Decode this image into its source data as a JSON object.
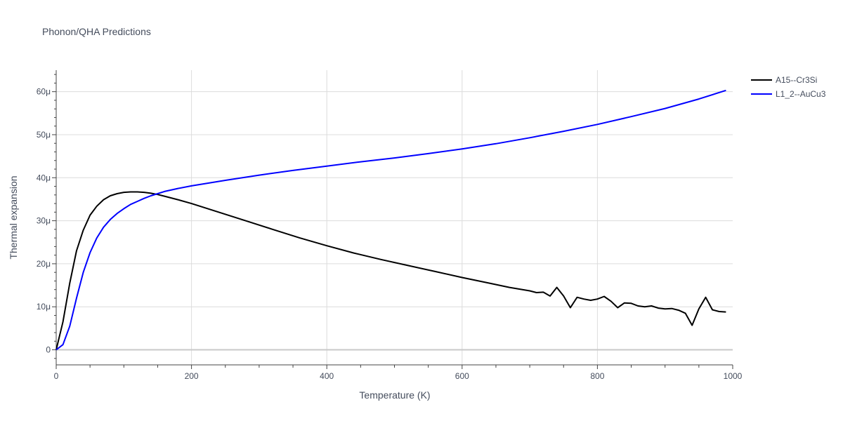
{
  "chart_data": {
    "type": "line",
    "title": "Phonon/QHA Predictions",
    "xlabel": "Temperature (K)",
    "ylabel": "Thermal expansion",
    "xlim": [
      0,
      1000
    ],
    "ylim": [
      -3.5,
      65
    ],
    "x_ticks": [
      {
        "v": 0,
        "label": "0"
      },
      {
        "v": 200,
        "label": "200"
      },
      {
        "v": 400,
        "label": "400"
      },
      {
        "v": 600,
        "label": "600"
      },
      {
        "v": 800,
        "label": "800"
      },
      {
        "v": 1000,
        "label": "1000"
      }
    ],
    "y_ticks": [
      {
        "v": 0,
        "label": "0"
      },
      {
        "v": 10,
        "label": "10μ"
      },
      {
        "v": 20,
        "label": "20μ"
      },
      {
        "v": 30,
        "label": "30μ"
      },
      {
        "v": 40,
        "label": "40μ"
      },
      {
        "v": 50,
        "label": "50μ"
      },
      {
        "v": 60,
        "label": "60μ"
      }
    ],
    "grid": true,
    "legend_position": "top-right",
    "series": [
      {
        "name": "A15--Cr3Si",
        "color": "#000000",
        "x": [
          0,
          10,
          20,
          30,
          40,
          50,
          60,
          70,
          80,
          90,
          100,
          110,
          120,
          130,
          140,
          150,
          160,
          180,
          200,
          240,
          280,
          320,
          360,
          400,
          440,
          480,
          520,
          560,
          600,
          640,
          670,
          700,
          710,
          720,
          730,
          740,
          750,
          760,
          770,
          780,
          790,
          800,
          810,
          820,
          830,
          840,
          850,
          860,
          870,
          880,
          890,
          900,
          910,
          920,
          930,
          940,
          950,
          960,
          970,
          980,
          990
        ],
        "y": [
          0,
          6.5,
          15.5,
          23,
          27.8,
          31.3,
          33.4,
          34.9,
          35.8,
          36.3,
          36.6,
          36.7,
          36.7,
          36.6,
          36.4,
          36.1,
          35.7,
          34.9,
          34.0,
          32.0,
          30.0,
          28.0,
          26.0,
          24.2,
          22.5,
          21.0,
          19.6,
          18.2,
          16.8,
          15.5,
          14.5,
          13.7,
          13.3,
          13.4,
          12.5,
          14.5,
          12.5,
          9.8,
          12.2,
          11.8,
          11.5,
          11.8,
          12.4,
          11.3,
          9.8,
          10.9,
          10.8,
          10.2,
          10.0,
          10.2,
          9.7,
          9.5,
          9.6,
          9.2,
          8.5,
          5.7,
          9.5,
          12.2,
          9.3,
          8.9,
          8.8
        ]
      },
      {
        "name": "L1_2--AuCu3",
        "color": "#0000ff",
        "x": [
          0,
          10,
          20,
          30,
          40,
          50,
          60,
          70,
          80,
          90,
          100,
          110,
          120,
          130,
          140,
          150,
          160,
          180,
          200,
          250,
          300,
          350,
          400,
          450,
          500,
          550,
          600,
          650,
          700,
          750,
          800,
          850,
          900,
          950,
          990
        ],
        "y": [
          0,
          1.2,
          5.5,
          12,
          18,
          22.6,
          26,
          28.5,
          30.3,
          31.7,
          32.8,
          33.8,
          34.5,
          35.2,
          35.8,
          36.3,
          36.8,
          37.5,
          38.1,
          39.4,
          40.6,
          41.7,
          42.7,
          43.7,
          44.6,
          45.6,
          46.7,
          47.9,
          49.3,
          50.8,
          52.4,
          54.2,
          56.1,
          58.3,
          60.3
        ]
      }
    ]
  }
}
